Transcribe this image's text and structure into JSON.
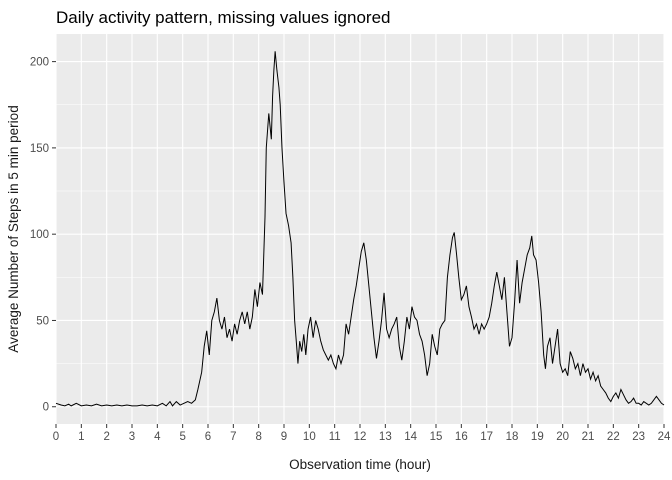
{
  "chart_data": {
    "type": "line",
    "title": "Daily activity pattern, missing values ignored",
    "xlabel": "Observation time (hour)",
    "ylabel": "Average Number of Steps in 5 min period",
    "xlim": [
      0,
      24
    ],
    "ylim": [
      -10,
      216
    ],
    "x_ticks": [
      0,
      1,
      2,
      3,
      4,
      5,
      6,
      7,
      8,
      9,
      10,
      11,
      12,
      13,
      14,
      15,
      16,
      17,
      18,
      19,
      20,
      21,
      22,
      23,
      24
    ],
    "y_ticks": [
      0,
      50,
      100,
      150,
      200
    ],
    "grid": true,
    "background": "#ebebeb",
    "grid_color": "#ffffff",
    "line_color": "#000000",
    "series": [
      {
        "points": [
          [
            0.0,
            2
          ],
          [
            0.2,
            1
          ],
          [
            0.35,
            0.5
          ],
          [
            0.5,
            1.5
          ],
          [
            0.6,
            0.5
          ],
          [
            0.8,
            2
          ],
          [
            1.0,
            0.5
          ],
          [
            1.2,
            1
          ],
          [
            1.4,
            0.5
          ],
          [
            1.6,
            1.5
          ],
          [
            1.8,
            0.5
          ],
          [
            2.0,
            1
          ],
          [
            2.2,
            0.5
          ],
          [
            2.4,
            1
          ],
          [
            2.6,
            0.5
          ],
          [
            2.8,
            1
          ],
          [
            3.0,
            0.5
          ],
          [
            3.2,
            0.5
          ],
          [
            3.4,
            1
          ],
          [
            3.6,
            0.5
          ],
          [
            3.8,
            1
          ],
          [
            4.0,
            0.5
          ],
          [
            4.2,
            2
          ],
          [
            4.35,
            0.5
          ],
          [
            4.5,
            3
          ],
          [
            4.6,
            0.5
          ],
          [
            4.75,
            3
          ],
          [
            4.9,
            1
          ],
          [
            5.05,
            2
          ],
          [
            5.2,
            3
          ],
          [
            5.35,
            2
          ],
          [
            5.5,
            4
          ],
          [
            5.6,
            10
          ],
          [
            5.75,
            20
          ],
          [
            5.85,
            35
          ],
          [
            5.95,
            44
          ],
          [
            6.05,
            30
          ],
          [
            6.15,
            50
          ],
          [
            6.25,
            55
          ],
          [
            6.35,
            63
          ],
          [
            6.45,
            50
          ],
          [
            6.55,
            45
          ],
          [
            6.65,
            52
          ],
          [
            6.75,
            40
          ],
          [
            6.85,
            45
          ],
          [
            6.95,
            38
          ],
          [
            7.05,
            48
          ],
          [
            7.15,
            42
          ],
          [
            7.25,
            50
          ],
          [
            7.35,
            55
          ],
          [
            7.45,
            48
          ],
          [
            7.55,
            55
          ],
          [
            7.65,
            45
          ],
          [
            7.75,
            52
          ],
          [
            7.85,
            68
          ],
          [
            7.95,
            58
          ],
          [
            8.05,
            72
          ],
          [
            8.15,
            65
          ],
          [
            8.25,
            110
          ],
          [
            8.3,
            150
          ],
          [
            8.4,
            170
          ],
          [
            8.5,
            155
          ],
          [
            8.55,
            180
          ],
          [
            8.6,
            195
          ],
          [
            8.65,
            206
          ],
          [
            8.72,
            195
          ],
          [
            8.8,
            185
          ],
          [
            8.85,
            175
          ],
          [
            8.92,
            150
          ],
          [
            9.0,
            130
          ],
          [
            9.08,
            112
          ],
          [
            9.18,
            105
          ],
          [
            9.28,
            95
          ],
          [
            9.35,
            75
          ],
          [
            9.42,
            50
          ],
          [
            9.5,
            35
          ],
          [
            9.55,
            25
          ],
          [
            9.62,
            38
          ],
          [
            9.7,
            32
          ],
          [
            9.78,
            42
          ],
          [
            9.86,
            30
          ],
          [
            9.95,
            45
          ],
          [
            10.05,
            52
          ],
          [
            10.15,
            40
          ],
          [
            10.25,
            50
          ],
          [
            10.35,
            45
          ],
          [
            10.45,
            38
          ],
          [
            10.55,
            33
          ],
          [
            10.65,
            30
          ],
          [
            10.75,
            27
          ],
          [
            10.85,
            30
          ],
          [
            10.95,
            25
          ],
          [
            11.05,
            22
          ],
          [
            11.15,
            30
          ],
          [
            11.25,
            25
          ],
          [
            11.35,
            30
          ],
          [
            11.45,
            48
          ],
          [
            11.55,
            42
          ],
          [
            11.65,
            52
          ],
          [
            11.75,
            62
          ],
          [
            11.85,
            70
          ],
          [
            11.95,
            80
          ],
          [
            12.05,
            90
          ],
          [
            12.15,
            95
          ],
          [
            12.25,
            85
          ],
          [
            12.35,
            70
          ],
          [
            12.45,
            55
          ],
          [
            12.55,
            40
          ],
          [
            12.65,
            28
          ],
          [
            12.75,
            38
          ],
          [
            12.85,
            50
          ],
          [
            12.95,
            66
          ],
          [
            13.05,
            45
          ],
          [
            13.15,
            40
          ],
          [
            13.25,
            45
          ],
          [
            13.35,
            48
          ],
          [
            13.45,
            52
          ],
          [
            13.55,
            35
          ],
          [
            13.65,
            27
          ],
          [
            13.75,
            38
          ],
          [
            13.85,
            52
          ],
          [
            13.95,
            45
          ],
          [
            14.05,
            58
          ],
          [
            14.15,
            52
          ],
          [
            14.25,
            50
          ],
          [
            14.35,
            42
          ],
          [
            14.45,
            38
          ],
          [
            14.55,
            30
          ],
          [
            14.65,
            18
          ],
          [
            14.75,
            25
          ],
          [
            14.85,
            42
          ],
          [
            14.95,
            35
          ],
          [
            15.05,
            30
          ],
          [
            15.15,
            45
          ],
          [
            15.25,
            48
          ],
          [
            15.35,
            50
          ],
          [
            15.45,
            75
          ],
          [
            15.55,
            88
          ],
          [
            15.65,
            98
          ],
          [
            15.72,
            101
          ],
          [
            15.8,
            90
          ],
          [
            15.9,
            75
          ],
          [
            16.0,
            62
          ],
          [
            16.1,
            65
          ],
          [
            16.2,
            70
          ],
          [
            16.3,
            58
          ],
          [
            16.4,
            52
          ],
          [
            16.5,
            45
          ],
          [
            16.6,
            48
          ],
          [
            16.7,
            42
          ],
          [
            16.8,
            48
          ],
          [
            16.9,
            45
          ],
          [
            17.0,
            48
          ],
          [
            17.1,
            52
          ],
          [
            17.2,
            60
          ],
          [
            17.3,
            70
          ],
          [
            17.4,
            78
          ],
          [
            17.5,
            70
          ],
          [
            17.6,
            62
          ],
          [
            17.7,
            75
          ],
          [
            17.8,
            55
          ],
          [
            17.9,
            35
          ],
          [
            18.0,
            40
          ],
          [
            18.1,
            60
          ],
          [
            18.2,
            85
          ],
          [
            18.3,
            60
          ],
          [
            18.4,
            72
          ],
          [
            18.5,
            80
          ],
          [
            18.6,
            88
          ],
          [
            18.7,
            92
          ],
          [
            18.78,
            99
          ],
          [
            18.85,
            88
          ],
          [
            18.95,
            85
          ],
          [
            19.05,
            72
          ],
          [
            19.15,
            55
          ],
          [
            19.25,
            30
          ],
          [
            19.32,
            22
          ],
          [
            19.4,
            35
          ],
          [
            19.5,
            40
          ],
          [
            19.6,
            25
          ],
          [
            19.7,
            35
          ],
          [
            19.8,
            45
          ],
          [
            19.9,
            25
          ],
          [
            20.0,
            20
          ],
          [
            20.1,
            22
          ],
          [
            20.2,
            18
          ],
          [
            20.3,
            32
          ],
          [
            20.4,
            28
          ],
          [
            20.5,
            22
          ],
          [
            20.6,
            25
          ],
          [
            20.7,
            18
          ],
          [
            20.8,
            25
          ],
          [
            20.9,
            20
          ],
          [
            21.0,
            22
          ],
          [
            21.1,
            16
          ],
          [
            21.2,
            20
          ],
          [
            21.3,
            15
          ],
          [
            21.4,
            18
          ],
          [
            21.5,
            12
          ],
          [
            21.6,
            10
          ],
          [
            21.7,
            8
          ],
          [
            21.8,
            5
          ],
          [
            21.9,
            3
          ],
          [
            22.0,
            6
          ],
          [
            22.1,
            8
          ],
          [
            22.2,
            5
          ],
          [
            22.3,
            10
          ],
          [
            22.4,
            7
          ],
          [
            22.5,
            4
          ],
          [
            22.6,
            2
          ],
          [
            22.7,
            3
          ],
          [
            22.8,
            5
          ],
          [
            22.9,
            2
          ],
          [
            23.0,
            2
          ],
          [
            23.1,
            1
          ],
          [
            23.2,
            3
          ],
          [
            23.3,
            2
          ],
          [
            23.4,
            1
          ],
          [
            23.5,
            2
          ],
          [
            23.6,
            4
          ],
          [
            23.7,
            6
          ],
          [
            23.8,
            4
          ],
          [
            23.9,
            2
          ],
          [
            24.0,
            1
          ]
        ]
      }
    ]
  }
}
